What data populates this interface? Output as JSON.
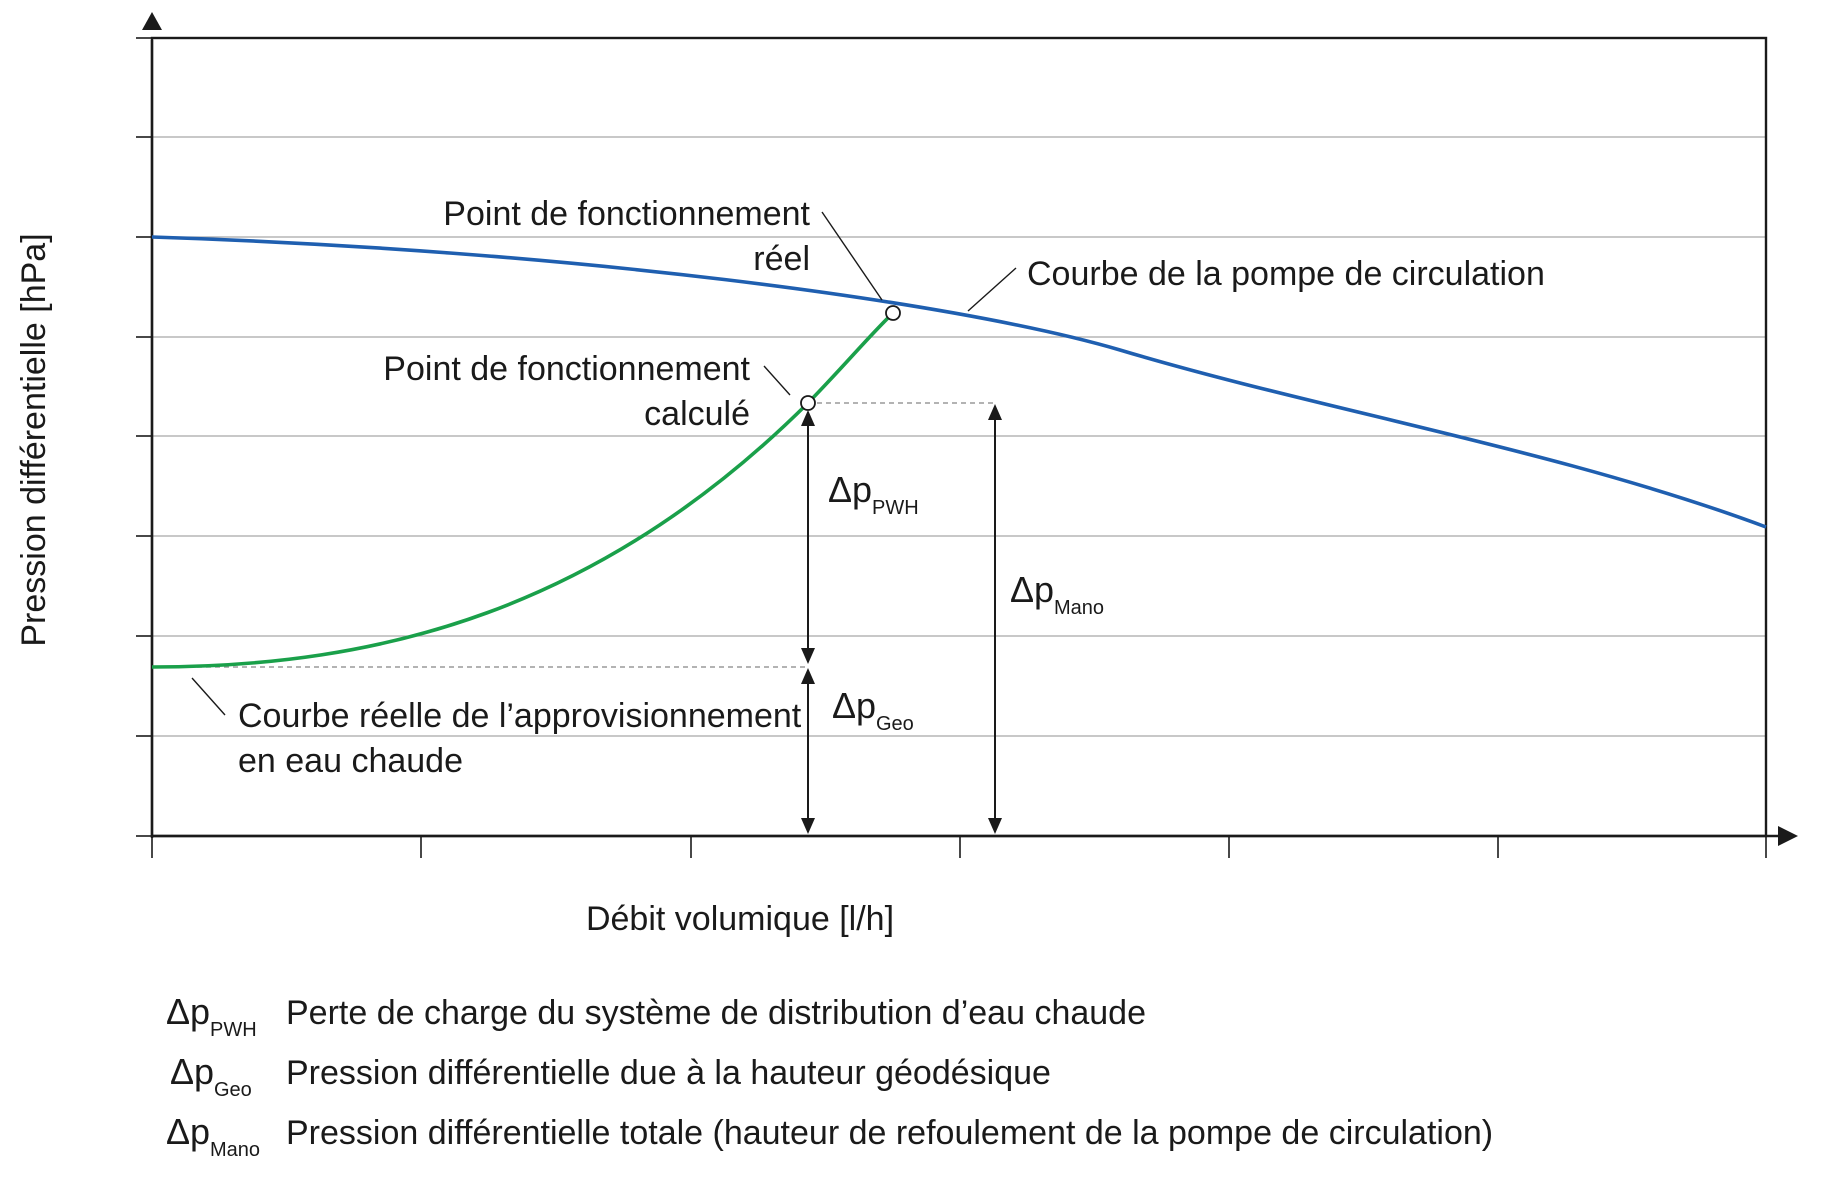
{
  "diagram": {
    "y_axis_label": "Pression différentielle [hPa]",
    "x_axis_label": "Débit volumique [l/h]",
    "pump_curve": {
      "label": "Courbe de la pompe de circulation",
      "color": "#1f5fb0"
    },
    "system_curve": {
      "label_line1": "Courbe réelle de l’approvisionnement",
      "label_line2": "en eau chaude",
      "color": "#1aa04a"
    },
    "real_point": {
      "label_line1": "Point de fonctionnement",
      "label_line2": "réel"
    },
    "calculated_point": {
      "label_line1": "Point de fonctionnement",
      "label_line2": "calculé"
    },
    "dimensions": {
      "pwh": {
        "symbol": "Δp",
        "subscript": "PWH"
      },
      "geo": {
        "symbol": "Δp",
        "subscript": "Geo"
      },
      "mano": {
        "symbol": "Δp",
        "subscript": "Mano"
      }
    }
  },
  "legend": [
    {
      "symbol": "Δp",
      "subscript": "PWH",
      "text": "Perte de charge du système de distribution d’eau chaude"
    },
    {
      "symbol": "Δp",
      "subscript": "Geo",
      "text": "Pression différentielle due à la hauteur géodésique"
    },
    {
      "symbol": "Δp",
      "subscript": "Mano",
      "text": "Pression différentielle totale (hauteur de refoulement de la pompe de circulation)"
    }
  ]
}
